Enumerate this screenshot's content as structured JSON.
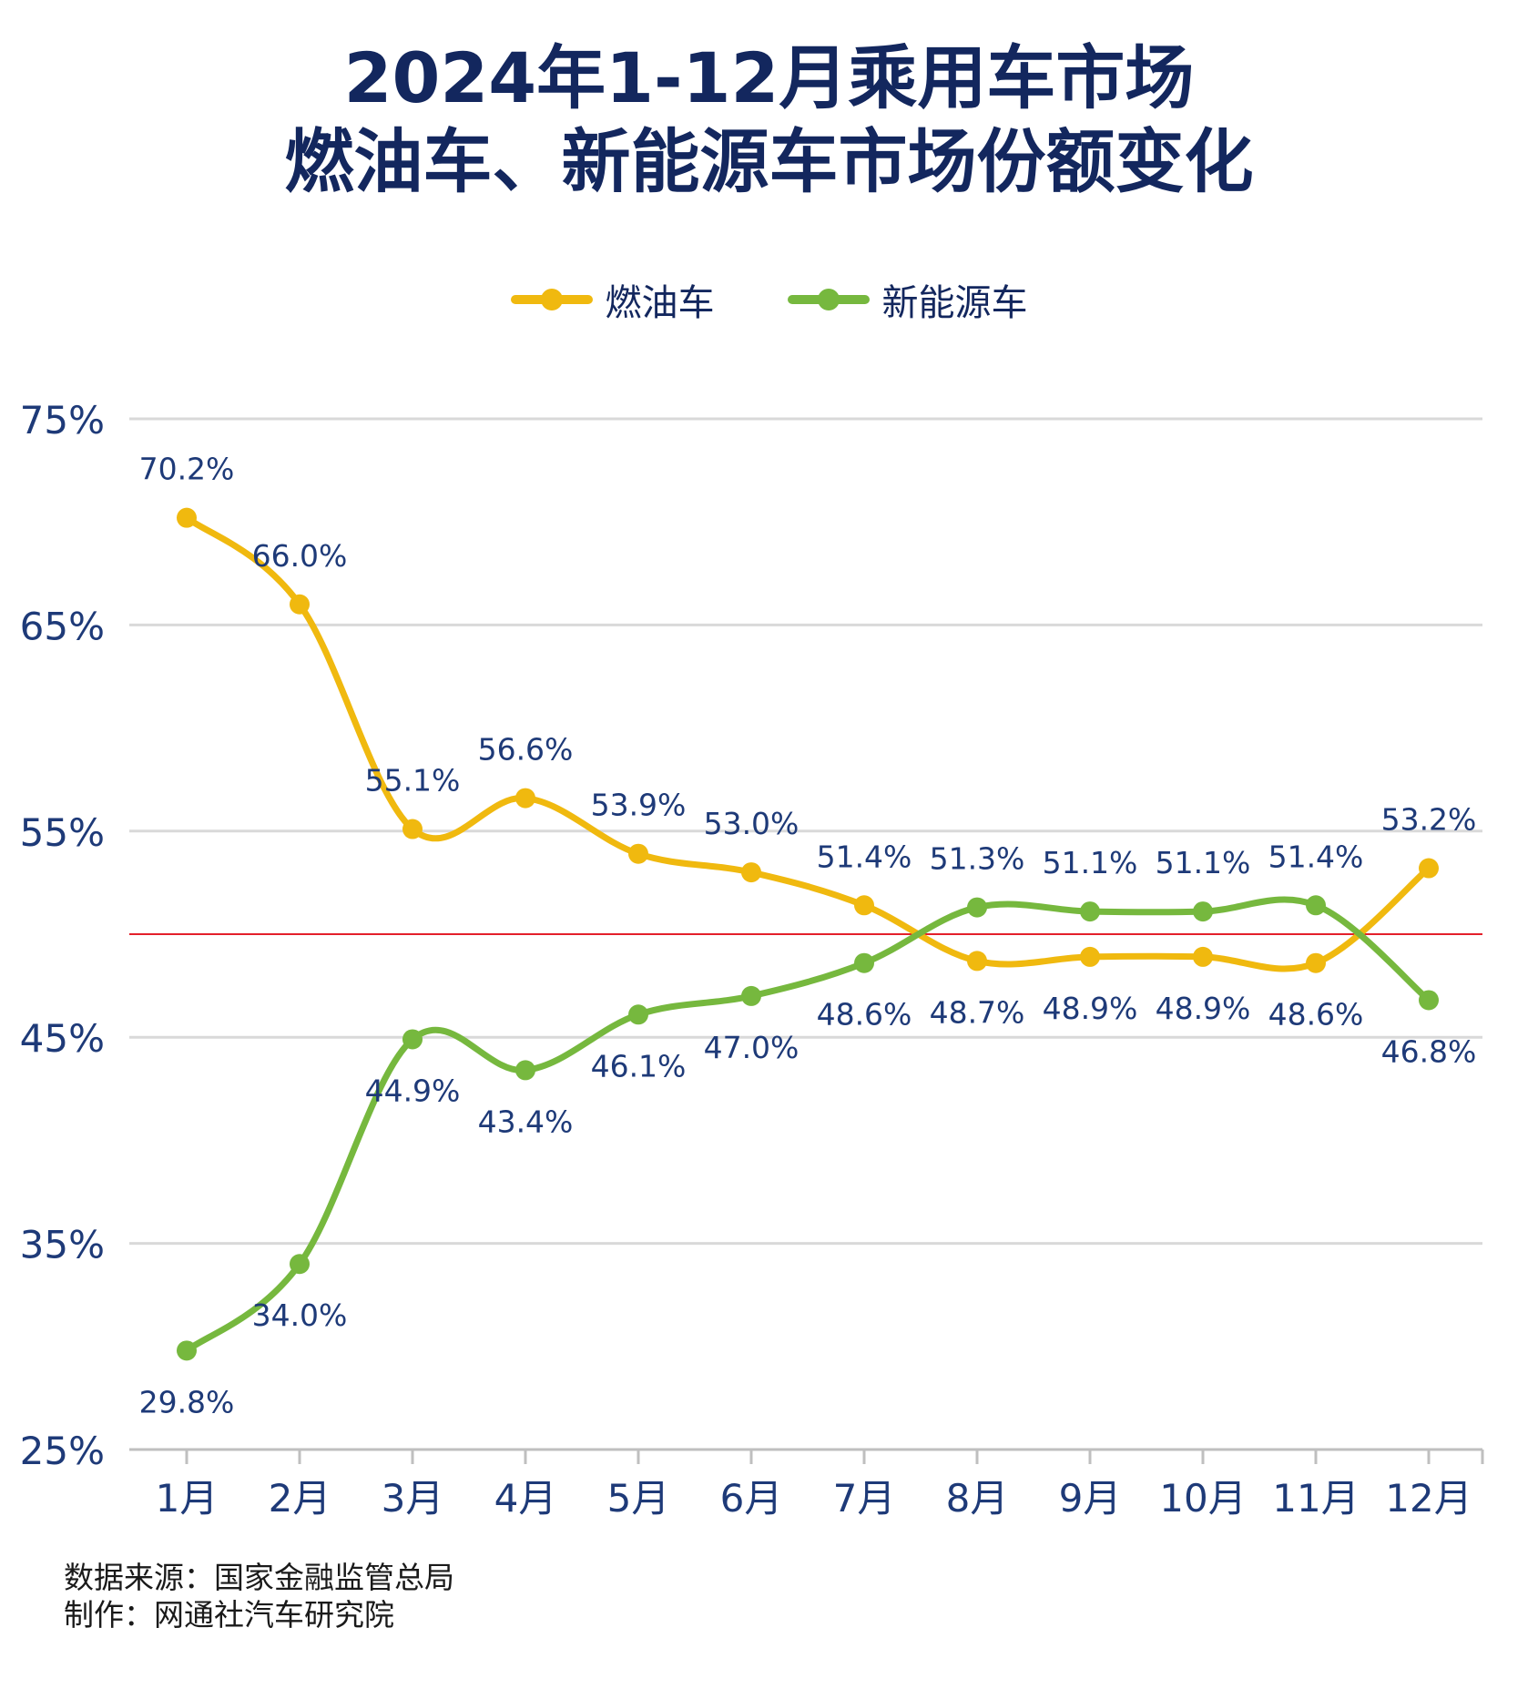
{
  "title": {
    "line1": "2024年1-12月乘用车市场",
    "line2": "燃油车、新能源车市场份额变化"
  },
  "legend": {
    "items": [
      {
        "label": "燃油车",
        "color": "#f0b90f"
      },
      {
        "label": "新能源车",
        "color": "#76b83e"
      }
    ]
  },
  "colors": {
    "title": "#13275e",
    "axis_text": "#1e3a78",
    "grid": "#d9d9d9",
    "reference_line": "#e3202a"
  },
  "chart_data": {
    "type": "line",
    "title": "2024年1-12月乘用车市场 燃油车、新能源车市场份额变化",
    "xlabel": "",
    "ylabel": "",
    "categories": [
      "1月",
      "2月",
      "3月",
      "4月",
      "5月",
      "6月",
      "7月",
      "8月",
      "9月",
      "10月",
      "11月",
      "12月"
    ],
    "ylim": [
      25,
      75
    ],
    "yticks": [
      25,
      35,
      45,
      55,
      65,
      75
    ],
    "ytick_labels": [
      "25%",
      "35%",
      "45%",
      "55%",
      "65%",
      "75%"
    ],
    "reference_line": 50,
    "grid": true,
    "legend_position": "top-center",
    "series": [
      {
        "name": "燃油车",
        "color": "#f0b90f",
        "values": [
          70.2,
          66.0,
          55.1,
          56.6,
          53.9,
          53.0,
          51.4,
          48.7,
          48.9,
          48.9,
          48.6,
          53.2
        ],
        "labels": [
          "70.2%",
          "66.0%",
          "55.1%",
          "56.6%",
          "53.9%",
          "53.0%",
          "51.4%",
          "48.7%",
          "48.9%",
          "48.9%",
          "48.6%",
          "53.2%"
        ]
      },
      {
        "name": "新能源车",
        "color": "#76b83e",
        "values": [
          29.8,
          34.0,
          44.9,
          43.4,
          46.1,
          47.0,
          48.6,
          51.3,
          51.1,
          51.1,
          51.4,
          46.8
        ],
        "labels": [
          "29.8%",
          "34.0%",
          "44.9%",
          "43.4%",
          "46.1%",
          "47.0%",
          "48.6%",
          "51.3%",
          "51.1%",
          "51.1%",
          "51.4%",
          "46.8%"
        ]
      }
    ]
  },
  "footer": {
    "source": "数据来源：国家金融监管总局",
    "author": "制作：网通社汽车研究院"
  }
}
